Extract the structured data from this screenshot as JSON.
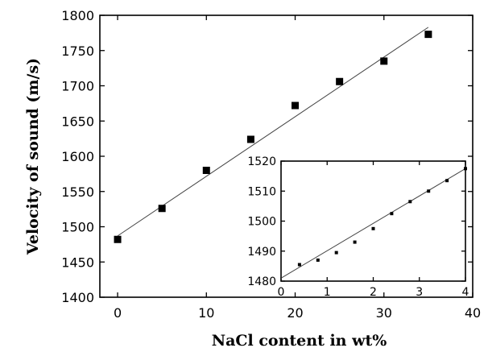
{
  "chart_data": [
    {
      "type": "scatter",
      "xlabel": "NaCl content in wt%",
      "ylabel": "Velocity of sound (m/s)",
      "xlim": [
        -2,
        40
      ],
      "ylim": [
        1400,
        1800
      ],
      "xticks": [
        0,
        10,
        20,
        30,
        40
      ],
      "yticks": [
        1400,
        1450,
        1500,
        1550,
        1600,
        1650,
        1700,
        1750,
        1800
      ],
      "grid": false,
      "series": [
        {
          "marker": "square",
          "x": [
            0,
            5,
            10,
            15,
            20,
            25,
            30,
            35
          ],
          "y": [
            1482,
            1526,
            1580,
            1624,
            1672,
            1706,
            1735,
            1773
          ]
        }
      ],
      "fit_line": {
        "x": [
          0,
          35
        ],
        "y": [
          1487,
          1783
        ]
      }
    },
    {
      "type": "scatter",
      "inset": true,
      "xlim": [
        0,
        4
      ],
      "ylim": [
        1480,
        1520
      ],
      "xticks": [
        0,
        1,
        2,
        3,
        4
      ],
      "yticks": [
        1480,
        1490,
        1500,
        1510,
        1520
      ],
      "grid": false,
      "series": [
        {
          "marker": "square",
          "x": [
            0.4,
            0.8,
            1.2,
            1.6,
            2.0,
            2.4,
            2.8,
            3.2,
            3.6,
            4.0
          ],
          "y": [
            1485.5,
            1487.0,
            1489.5,
            1493.0,
            1497.5,
            1502.5,
            1506.5,
            1510.0,
            1513.5,
            1517.5
          ]
        }
      ],
      "fit_line": {
        "x": [
          0,
          4
        ],
        "y": [
          1481,
          1517.5
        ]
      }
    }
  ]
}
